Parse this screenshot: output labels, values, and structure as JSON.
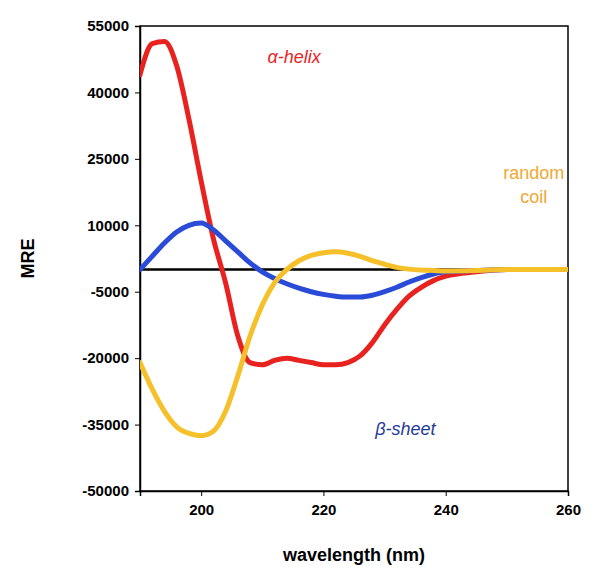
{
  "chart_data": {
    "type": "line",
    "x_label": "wavelength (nm)",
    "y_label": "MRE",
    "x": [
      190,
      192,
      194,
      196,
      198,
      200,
      202,
      204,
      206,
      208,
      210,
      212,
      214,
      216,
      218,
      220,
      222,
      224,
      226,
      228,
      230,
      232,
      234,
      236,
      238,
      240,
      245,
      250,
      255,
      260
    ],
    "series": [
      {
        "name": "α-helix",
        "color": "#e8231f",
        "values": [
          44000,
          51000,
          51500,
          46000,
          34000,
          20000,
          7000,
          -3000,
          -15000,
          -21000,
          -21500,
          -20500,
          -20000,
          -20500,
          -21000,
          -21500,
          -21500,
          -21000,
          -19500,
          -16500,
          -12500,
          -9000,
          -6000,
          -4000,
          -2500,
          -1500,
          -500,
          0,
          0,
          0
        ]
      },
      {
        "name": "β-sheet",
        "color": "#2a4bd7",
        "values": [
          0,
          3000,
          6000,
          8500,
          10000,
          10500,
          9000,
          6500,
          4000,
          1500,
          -500,
          -2000,
          -3200,
          -4200,
          -5000,
          -5600,
          -6000,
          -6200,
          -6200,
          -5800,
          -5000,
          -4000,
          -2800,
          -1800,
          -1000,
          -500,
          -200,
          0,
          0,
          0
        ]
      },
      {
        "name": "random coil",
        "color": "#f5c02a",
        "values": [
          -21000,
          -27000,
          -32000,
          -35500,
          -37000,
          -37500,
          -36500,
          -32000,
          -24000,
          -15000,
          -8000,
          -3000,
          0,
          2000,
          3200,
          3800,
          4000,
          3700,
          3000,
          2000,
          1200,
          500,
          100,
          -100,
          -200,
          -300,
          -200,
          0,
          0,
          0
        ]
      }
    ],
    "annotations": [
      {
        "text": "α-helix",
        "color": "#e8231f"
      },
      {
        "text": "random coil",
        "color": "#f0a830"
      },
      {
        "text": "β-sheet",
        "color": "#1f3b9a"
      }
    ],
    "hlines": [
      0
    ],
    "xlim": [
      190,
      260
    ],
    "ylim": [
      -50000,
      55000
    ],
    "xticks": [
      200,
      220,
      240,
      260
    ],
    "yticks": [
      -50000,
      -35000,
      -20000,
      -5000,
      10000,
      25000,
      40000,
      55000
    ],
    "grid": false
  }
}
